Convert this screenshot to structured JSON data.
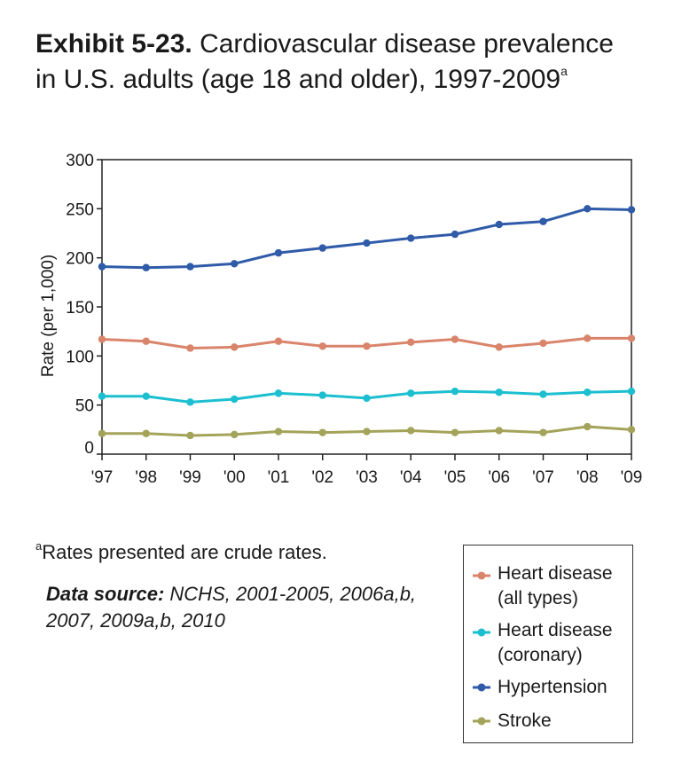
{
  "title": {
    "bold": "Exhibit 5-23.",
    "text": "Cardiovascular disease prevalence in U.S. adults (age 18 and older), 1997-2009",
    "sup": "a"
  },
  "chart_data": {
    "type": "line",
    "categories": [
      "'97",
      "'98",
      "'99",
      "'00",
      "'01",
      "'02",
      "'03",
      "'04",
      "'05",
      "'06",
      "'07",
      "'08",
      "'09"
    ],
    "ylabel": "Rate (per 1,000)",
    "xlabel": "",
    "ylim": [
      0,
      300
    ],
    "yticks": [
      0,
      50,
      100,
      150,
      200,
      250,
      300
    ],
    "grid": false,
    "legend_position": "bottom-right",
    "series": [
      {
        "name": "Heart disease (all types)",
        "color": "#d9846b",
        "values": [
          117,
          115,
          108,
          109,
          115,
          110,
          110,
          114,
          117,
          109,
          113,
          118,
          118
        ]
      },
      {
        "name": "Heart disease (coronary)",
        "color": "#1bbfcf",
        "values": [
          59,
          59,
          53,
          56,
          62,
          60,
          57,
          62,
          64,
          63,
          61,
          63,
          64
        ]
      },
      {
        "name": "Hypertension",
        "color": "#2f5ba8",
        "values": [
          191,
          190,
          191,
          194,
          205,
          210,
          215,
          220,
          224,
          234,
          237,
          250,
          249
        ]
      },
      {
        "name": "Stroke",
        "color": "#a4a35a",
        "values": [
          21,
          21,
          19,
          20,
          23,
          22,
          23,
          24,
          22,
          24,
          22,
          28,
          25
        ]
      }
    ]
  },
  "footnote": {
    "sup": "a",
    "text": "Rates presented are crude rates."
  },
  "source": {
    "label": "Data source:",
    "text": "NCHS, 2001-2005, 2006a,b, 2007, 2009a,b, 2010"
  },
  "legend": [
    {
      "line1": "Heart disease",
      "line2": "(all types)",
      "color": "#d9846b"
    },
    {
      "line1": "Heart disease",
      "line2": "(coronary)",
      "color": "#1bbfcf"
    },
    {
      "line1": "Hypertension",
      "line2": "",
      "color": "#2f5ba8"
    },
    {
      "line1": "Stroke",
      "line2": "",
      "color": "#a4a35a"
    }
  ]
}
